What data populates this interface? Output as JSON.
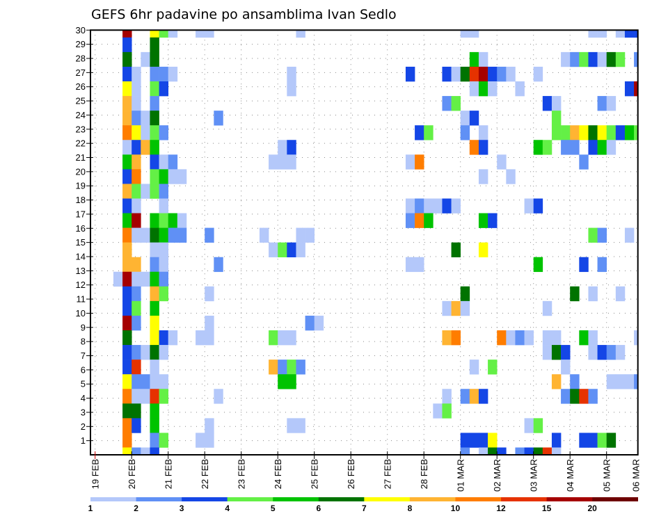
{
  "chart_data": {
    "type": "heatmap",
    "title": "GEFS 6hr padavine po ansamblima Ivan Sedlo",
    "xlabel": "",
    "ylabel": "",
    "x_tick_labels": [
      "19 FEB",
      "20 FEB",
      "21 FEB",
      "22 FEB",
      "23 FEB",
      "24 FEB",
      "25 FEB",
      "26 FEB",
      "27 FEB",
      "28 FEB",
      "01 MAR",
      "02 MAR",
      "03 MAR",
      "04 MAR",
      "05 MAR",
      "06 MAR"
    ],
    "y_tick_labels": [
      "1",
      "2",
      "3",
      "4",
      "5",
      "6",
      "7",
      "8",
      "9",
      "10",
      "11",
      "12",
      "13",
      "14",
      "15",
      "16",
      "17",
      "18",
      "19",
      "20",
      "21",
      "22",
      "23",
      "24",
      "25",
      "26",
      "27",
      "28",
      "29",
      "30"
    ],
    "time_step_hours": 6,
    "time_steps": 60,
    "grid": true,
    "legend": {
      "placement": "bottom",
      "bin_edges": [
        "1",
        "2",
        "3",
        "4",
        "5",
        "6",
        "7",
        "8",
        "10",
        "12",
        "15",
        "20"
      ],
      "colors": [
        "#b4c8fa",
        "#6090f5",
        "#1446e6",
        "#64f046",
        "#00c300",
        "#007300",
        "#ffff00",
        "#ffb432",
        "#ff7d00",
        "#e63200",
        "#a50000",
        "#6e0000"
      ]
    },
    "cell_format": "[time_step_index, color_level (1-12, index into legend bins)]",
    "rows_top_to_bottom": [
      [
        [
          3,
          11
        ],
        [
          6,
          7
        ],
        [
          7,
          4
        ],
        [
          8,
          1
        ],
        [
          11,
          1
        ],
        [
          12,
          1
        ],
        [
          22,
          1
        ],
        [
          40,
          1
        ],
        [
          41,
          1
        ],
        [
          54,
          1
        ],
        [
          55,
          1
        ],
        [
          57,
          1
        ],
        [
          58,
          3
        ],
        [
          59,
          3
        ]
      ],
      [
        [
          3,
          3
        ],
        [
          6,
          6
        ]
      ],
      [
        [
          3,
          6
        ],
        [
          5,
          1
        ],
        [
          6,
          6
        ],
        [
          41,
          5
        ],
        [
          42,
          1
        ],
        [
          51,
          1
        ],
        [
          52,
          2
        ],
        [
          53,
          4
        ],
        [
          54,
          3
        ],
        [
          55,
          1
        ],
        [
          56,
          6
        ],
        [
          57,
          4
        ],
        [
          59,
          2
        ]
      ],
      [
        [
          3,
          3
        ],
        [
          4,
          1
        ],
        [
          6,
          2
        ],
        [
          7,
          2
        ],
        [
          8,
          1
        ],
        [
          21,
          1
        ],
        [
          34,
          3
        ],
        [
          38,
          3
        ],
        [
          39,
          1
        ],
        [
          40,
          6
        ],
        [
          41,
          10
        ],
        [
          42,
          11
        ],
        [
          43,
          3
        ],
        [
          44,
          2
        ],
        [
          45,
          1
        ],
        [
          48,
          1
        ]
      ],
      [
        [
          3,
          7
        ],
        [
          4,
          1
        ],
        [
          6,
          4
        ],
        [
          7,
          3
        ],
        [
          21,
          1
        ],
        [
          41,
          1
        ],
        [
          42,
          5
        ],
        [
          43,
          1
        ],
        [
          46,
          1
        ],
        [
          58,
          3
        ],
        [
          59,
          11
        ]
      ],
      [
        [
          3,
          8
        ],
        [
          4,
          1
        ],
        [
          6,
          2
        ],
        [
          38,
          2
        ],
        [
          39,
          4
        ],
        [
          49,
          3
        ],
        [
          50,
          1
        ],
        [
          55,
          2
        ],
        [
          56,
          1
        ]
      ],
      [
        [
          3,
          8
        ],
        [
          4,
          2
        ],
        [
          5,
          1
        ],
        [
          6,
          6
        ],
        [
          13,
          2
        ],
        [
          40,
          1
        ],
        [
          41,
          3
        ],
        [
          50,
          4
        ]
      ],
      [
        [
          3,
          9
        ],
        [
          4,
          7
        ],
        [
          5,
          1
        ],
        [
          6,
          4
        ],
        [
          7,
          2
        ],
        [
          35,
          3
        ],
        [
          36,
          4
        ],
        [
          40,
          2
        ],
        [
          42,
          1
        ],
        [
          50,
          4
        ],
        [
          51,
          4
        ],
        [
          52,
          8
        ],
        [
          53,
          7
        ],
        [
          54,
          6
        ],
        [
          55,
          7
        ],
        [
          56,
          4
        ],
        [
          57,
          3
        ],
        [
          58,
          5
        ],
        [
          59,
          4
        ]
      ],
      [
        [
          3,
          1
        ],
        [
          4,
          3
        ],
        [
          5,
          8
        ],
        [
          6,
          5
        ],
        [
          20,
          1
        ],
        [
          21,
          3
        ],
        [
          41,
          9
        ],
        [
          42,
          3
        ],
        [
          48,
          5
        ],
        [
          49,
          4
        ],
        [
          51,
          2
        ],
        [
          52,
          2
        ],
        [
          54,
          3
        ],
        [
          55,
          5
        ],
        [
          56,
          1
        ]
      ],
      [
        [
          3,
          5
        ],
        [
          4,
          8
        ],
        [
          6,
          3
        ],
        [
          7,
          1
        ],
        [
          8,
          2
        ],
        [
          19,
          1
        ],
        [
          20,
          1
        ],
        [
          21,
          1
        ],
        [
          34,
          1
        ],
        [
          35,
          9
        ],
        [
          44,
          1
        ],
        [
          53,
          2
        ]
      ],
      [
        [
          3,
          3
        ],
        [
          4,
          9
        ],
        [
          6,
          4
        ],
        [
          7,
          5
        ],
        [
          8,
          1
        ],
        [
          9,
          1
        ],
        [
          42,
          1
        ],
        [
          45,
          1
        ]
      ],
      [
        [
          3,
          8
        ],
        [
          4,
          4
        ],
        [
          5,
          1
        ],
        [
          6,
          4
        ],
        [
          7,
          2
        ]
      ],
      [
        [
          3,
          3
        ],
        [
          4,
          1
        ],
        [
          7,
          1
        ],
        [
          34,
          1
        ],
        [
          35,
          2
        ],
        [
          36,
          1
        ],
        [
          37,
          1
        ],
        [
          38,
          3
        ],
        [
          39,
          1
        ],
        [
          47,
          1
        ],
        [
          48,
          3
        ]
      ],
      [
        [
          3,
          5
        ],
        [
          4,
          11
        ],
        [
          6,
          5
        ],
        [
          7,
          4
        ],
        [
          8,
          5
        ],
        [
          9,
          1
        ],
        [
          34,
          2
        ],
        [
          35,
          9
        ],
        [
          36,
          5
        ],
        [
          42,
          5
        ],
        [
          43,
          3
        ]
      ],
      [
        [
          3,
          9
        ],
        [
          4,
          1
        ],
        [
          5,
          1
        ],
        [
          6,
          6
        ],
        [
          7,
          5
        ],
        [
          8,
          2
        ],
        [
          9,
          2
        ],
        [
          12,
          2
        ],
        [
          18,
          1
        ],
        [
          22,
          1
        ],
        [
          23,
          1
        ],
        [
          54,
          4
        ],
        [
          55,
          2
        ],
        [
          58,
          1
        ]
      ],
      [
        [
          3,
          8
        ],
        [
          6,
          1
        ],
        [
          7,
          1
        ],
        [
          19,
          1
        ],
        [
          20,
          4
        ],
        [
          21,
          3
        ],
        [
          22,
          1
        ],
        [
          39,
          6
        ],
        [
          42,
          7
        ]
      ],
      [
        [
          3,
          8
        ],
        [
          4,
          8
        ],
        [
          6,
          2
        ],
        [
          7,
          1
        ],
        [
          13,
          2
        ],
        [
          34,
          1
        ],
        [
          35,
          1
        ],
        [
          48,
          5
        ],
        [
          53,
          3
        ],
        [
          55,
          2
        ]
      ],
      [
        [
          2,
          1
        ],
        [
          3,
          11
        ],
        [
          4,
          1
        ],
        [
          5,
          1
        ],
        [
          6,
          5
        ],
        [
          7,
          2
        ]
      ],
      [
        [
          3,
          3
        ],
        [
          4,
          2
        ],
        [
          6,
          8
        ],
        [
          7,
          4
        ],
        [
          12,
          1
        ],
        [
          40,
          6
        ],
        [
          52,
          6
        ],
        [
          54,
          1
        ],
        [
          57,
          1
        ]
      ],
      [
        [
          3,
          3
        ],
        [
          4,
          4
        ],
        [
          6,
          5
        ],
        [
          38,
          1
        ],
        [
          39,
          8
        ],
        [
          40,
          1
        ],
        [
          49,
          1
        ]
      ],
      [
        [
          3,
          11
        ],
        [
          4,
          2
        ],
        [
          6,
          7
        ],
        [
          12,
          1
        ],
        [
          23,
          2
        ],
        [
          24,
          1
        ]
      ],
      [
        [
          3,
          6
        ],
        [
          6,
          7
        ],
        [
          7,
          3
        ],
        [
          8,
          1
        ],
        [
          11,
          1
        ],
        [
          12,
          1
        ],
        [
          19,
          4
        ],
        [
          20,
          1
        ],
        [
          21,
          1
        ],
        [
          38,
          8
        ],
        [
          39,
          9
        ],
        [
          44,
          9
        ],
        [
          45,
          1
        ],
        [
          46,
          2
        ],
        [
          47,
          1
        ],
        [
          49,
          1
        ],
        [
          50,
          1
        ],
        [
          53,
          5
        ],
        [
          54,
          1
        ],
        [
          59,
          1
        ]
      ],
      [
        [
          3,
          3
        ],
        [
          4,
          2
        ],
        [
          5,
          1
        ],
        [
          6,
          6
        ],
        [
          7,
          1
        ],
        [
          49,
          1
        ],
        [
          50,
          6
        ],
        [
          51,
          3
        ],
        [
          54,
          1
        ],
        [
          55,
          3
        ],
        [
          56,
          2
        ],
        [
          57,
          1
        ]
      ],
      [
        [
          3,
          3
        ],
        [
          4,
          10
        ],
        [
          6,
          1
        ],
        [
          19,
          8
        ],
        [
          20,
          2
        ],
        [
          21,
          4
        ],
        [
          22,
          2
        ],
        [
          41,
          1
        ],
        [
          43,
          4
        ],
        [
          51,
          1
        ]
      ],
      [
        [
          3,
          7
        ],
        [
          4,
          2
        ],
        [
          5,
          2
        ],
        [
          6,
          1
        ],
        [
          7,
          1
        ],
        [
          20,
          5
        ],
        [
          21,
          5
        ],
        [
          50,
          8
        ],
        [
          52,
          2
        ],
        [
          56,
          1
        ],
        [
          57,
          1
        ],
        [
          58,
          1
        ],
        [
          59,
          2
        ]
      ],
      [
        [
          3,
          9
        ],
        [
          4,
          1
        ],
        [
          5,
          1
        ],
        [
          6,
          10
        ],
        [
          7,
          4
        ],
        [
          13,
          1
        ],
        [
          38,
          1
        ],
        [
          40,
          2
        ],
        [
          41,
          8
        ],
        [
          42,
          3
        ],
        [
          51,
          2
        ],
        [
          52,
          6
        ],
        [
          53,
          10
        ],
        [
          54,
          2
        ]
      ],
      [
        [
          3,
          6
        ],
        [
          4,
          6
        ],
        [
          6,
          5
        ],
        [
          37,
          1
        ],
        [
          38,
          4
        ]
      ],
      [
        [
          3,
          9
        ],
        [
          4,
          3
        ],
        [
          6,
          5
        ],
        [
          12,
          1
        ],
        [
          21,
          1
        ],
        [
          22,
          1
        ],
        [
          47,
          1
        ],
        [
          48,
          4
        ]
      ],
      [
        [
          3,
          9
        ],
        [
          6,
          2
        ],
        [
          7,
          4
        ],
        [
          11,
          1
        ],
        [
          12,
          1
        ],
        [
          40,
          3
        ],
        [
          41,
          3
        ],
        [
          42,
          3
        ],
        [
          43,
          7
        ],
        [
          50,
          3
        ],
        [
          53,
          3
        ],
        [
          54,
          3
        ],
        [
          55,
          4
        ],
        [
          56,
          6
        ]
      ],
      [
        [
          3,
          7
        ],
        [
          4,
          2
        ],
        [
          5,
          1
        ],
        [
          6,
          3
        ],
        [
          40,
          2
        ],
        [
          42,
          1
        ],
        [
          43,
          6
        ],
        [
          44,
          3
        ],
        [
          46,
          2
        ],
        [
          47,
          3
        ],
        [
          48,
          6
        ],
        [
          49,
          10
        ],
        [
          50,
          1
        ]
      ]
    ]
  }
}
